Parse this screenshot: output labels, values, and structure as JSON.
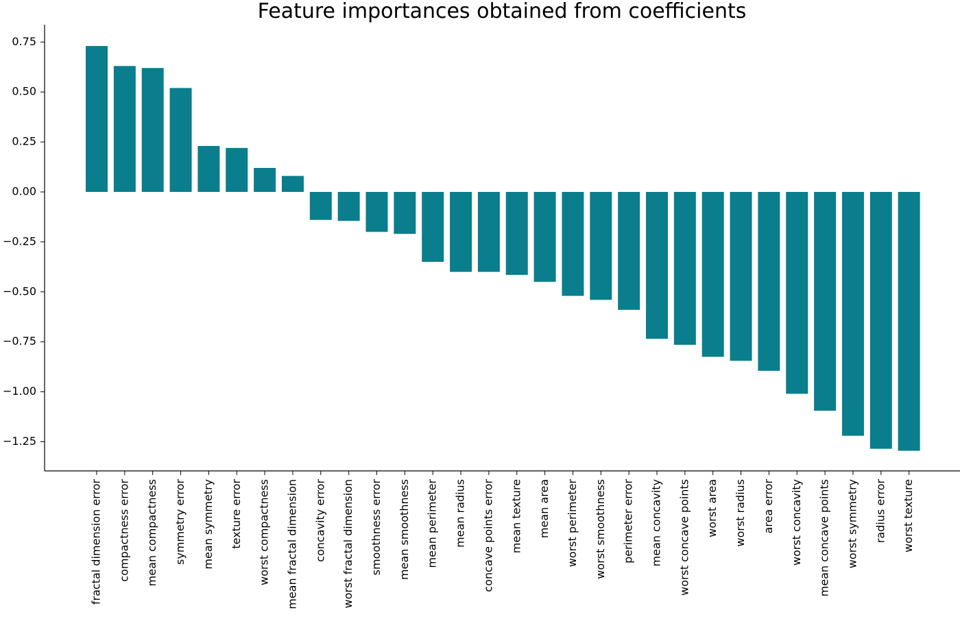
{
  "chart_data": {
    "type": "bar",
    "title": "Feature importances obtained from coefficients",
    "xlabel": "",
    "ylabel": "",
    "bar_color": "#0a7e8c",
    "ylim": [
      -1.4,
      0.84
    ],
    "yticks": [
      0.75,
      0.5,
      0.25,
      0.0,
      -0.25,
      -0.5,
      -0.75,
      -1.0,
      -1.25
    ],
    "ytick_labels": [
      "0.75",
      "0.50",
      "0.25",
      "0.00",
      "−0.25",
      "−0.50",
      "−0.75",
      "−1.00",
      "−1.25"
    ],
    "grid": false,
    "legend": "none",
    "categories": [
      "fractal dimension error",
      "compactness error",
      "mean compactness",
      "symmetry error",
      "mean symmetry",
      "texture error",
      "worst compactness",
      "mean fractal dimension",
      "concavity error",
      "worst fractal dimension",
      "smoothness error",
      "mean smoothness",
      "mean perimeter",
      "mean radius",
      "concave points error",
      "mean texture",
      "mean area",
      "worst perimeter",
      "worst smoothness",
      "perimeter error",
      "mean concavity",
      "worst concave points",
      "worst area",
      "worst radius",
      "area error",
      "worst concavity",
      "mean concave points",
      "worst symmetry",
      "radius error",
      "worst texture"
    ],
    "values": [
      0.73,
      0.63,
      0.62,
      0.52,
      0.23,
      0.22,
      0.12,
      0.08,
      -0.14,
      -0.145,
      -0.2,
      -0.21,
      -0.35,
      -0.4,
      -0.4,
      -0.415,
      -0.45,
      -0.52,
      -0.54,
      -0.59,
      -0.735,
      -0.765,
      -0.825,
      -0.845,
      -0.895,
      -1.01,
      -1.095,
      -1.22,
      -1.285,
      -1.295
    ]
  }
}
